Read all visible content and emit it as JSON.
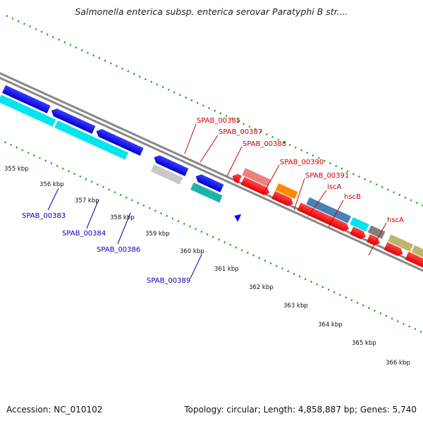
{
  "title": "Salmonella enterica subsp. enterica serovar Paratyphi B str....",
  "footer": {
    "accession": "Accession: NC_010102",
    "summary": "Topology: circular; Length: 4,858,887 bp; Genes: 5,740"
  },
  "kbp_ticks": [
    "355 kbp",
    "356 kbp",
    "357 kbp",
    "358 kbp",
    "359 kbp",
    "360 kbp",
    "361 kbp",
    "362 kbp",
    "363 kbp",
    "364 kbp",
    "365 kbp",
    "366 kbp"
  ],
  "gene_labels_forward": [
    "SPAB_00385",
    "SPAB_00387",
    "SPAB_00388",
    "SPAB_00390",
    "SPAB_00391",
    "iscA",
    "hscB",
    "hscA"
  ],
  "gene_labels_reverse": [
    "SPAB_00383",
    "SPAB_00384",
    "SPAB_00386",
    "SPAB_00389"
  ],
  "colors": {
    "forward_cds": "#ff0000",
    "reverse_cds": "#0000ff",
    "cyan": "#00e5ee",
    "pink": "#f08080",
    "orange": "#ff8c00",
    "steelblue": "#4682b4",
    "khaki": "#bdb76b",
    "grey": "#808080",
    "lightgrey": "#c8c8c8",
    "teal": "#20b2aa",
    "tick_green": "#00aa00",
    "backbone": "#808080"
  }
}
